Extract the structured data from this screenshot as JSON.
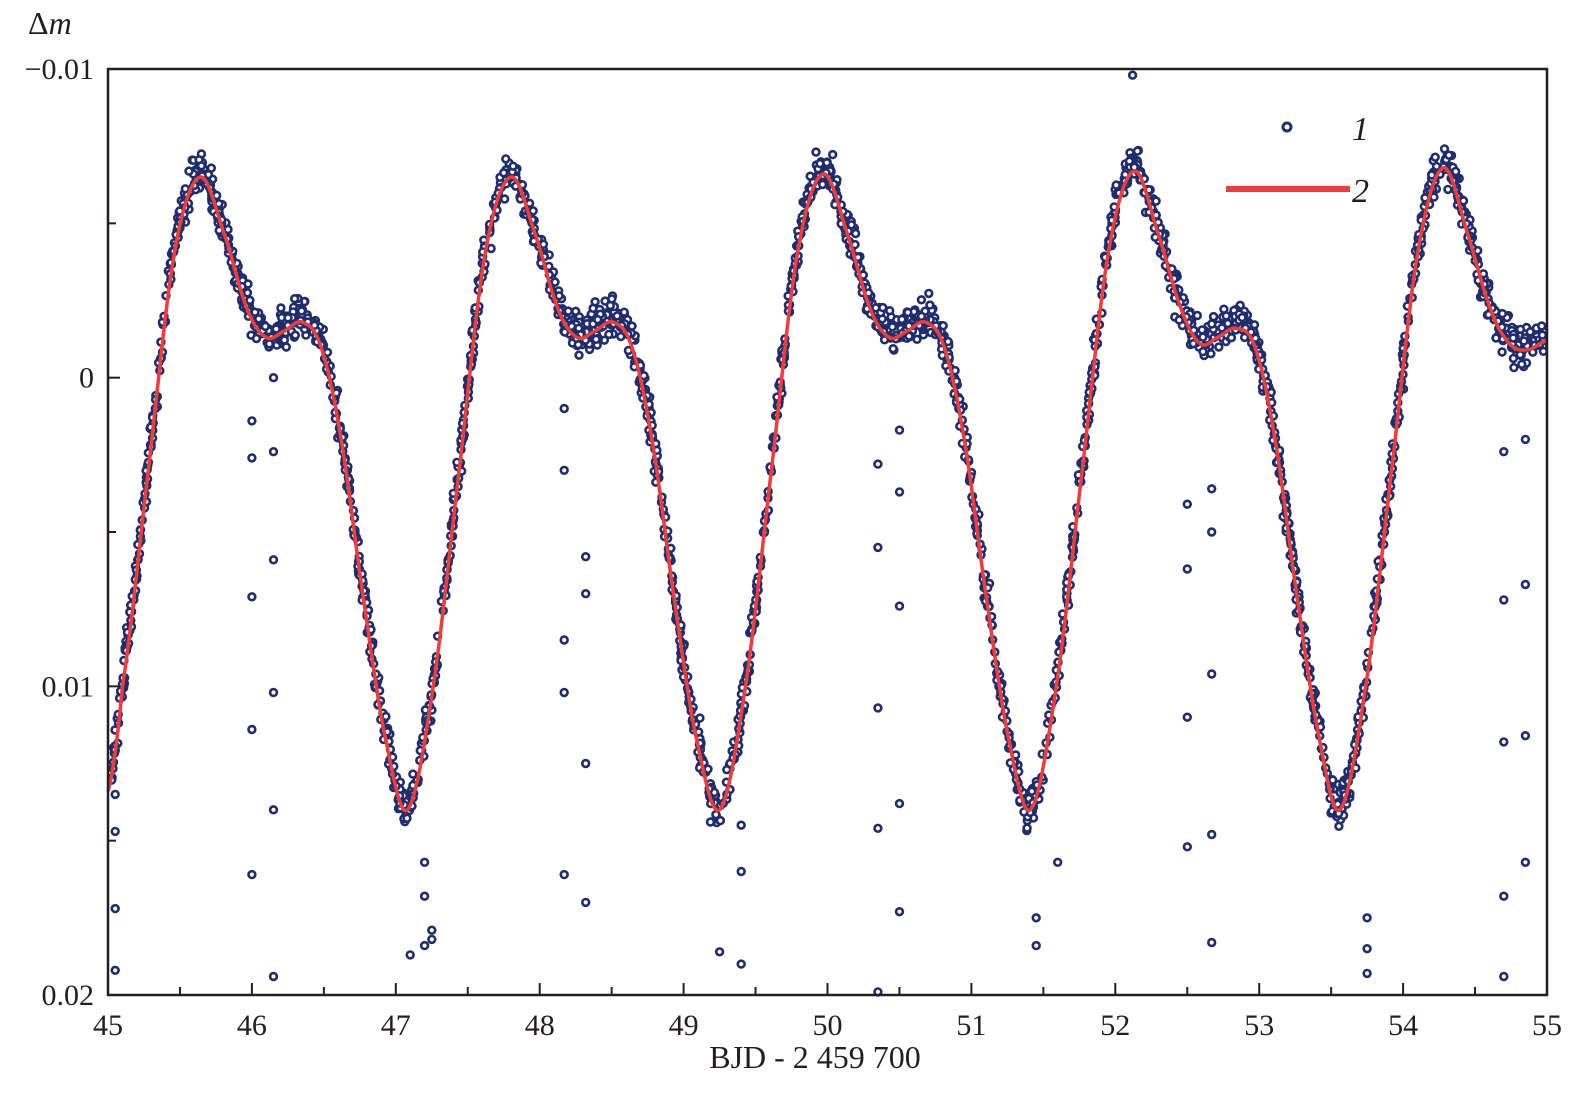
{
  "chart_data": {
    "type": "scatter",
    "title": "",
    "xlabel": "BJD - 2 459 700",
    "ylabel_symbol": "Δ",
    "ylabel_var": "m",
    "xlim": [
      45,
      55
    ],
    "ylim": [
      -0.01,
      0.02
    ],
    "y_inverted": true,
    "grid": false,
    "x_ticks": [
      "45",
      "46",
      "47",
      "48",
      "49",
      "50",
      "51",
      "52",
      "53",
      "54",
      "55"
    ],
    "x_tick_values": [
      45,
      46,
      47,
      48,
      49,
      50,
      51,
      52,
      53,
      54,
      55
    ],
    "y_ticks": [
      "−0.01",
      "0",
      "0.01",
      "0.02"
    ],
    "y_tick_values": [
      -0.01,
      0,
      0.01,
      0.02
    ],
    "colors": {
      "observations": "#1f2d6b",
      "model": "#ee3d3a",
      "axis": "#231f20"
    },
    "legend": {
      "placement": "top-right",
      "entries": [
        {
          "label": "1",
          "kind": "points"
        },
        {
          "label": "2",
          "kind": "line"
        }
      ]
    },
    "series": [
      {
        "name": "2",
        "kind": "line",
        "x": [
          45.0,
          45.1,
          45.28,
          45.46,
          45.64,
          45.82,
          45.97,
          46.1,
          46.22,
          46.35,
          46.48,
          46.62,
          46.77,
          46.92,
          47.08,
          47.26,
          47.44,
          47.62,
          47.8,
          47.98,
          48.13,
          48.26,
          48.38,
          48.51,
          48.64,
          48.78,
          48.93,
          49.08,
          49.25,
          49.43,
          49.61,
          49.79,
          49.97,
          50.15,
          50.3,
          50.43,
          50.55,
          50.68,
          50.81,
          50.95,
          51.1,
          51.25,
          51.41,
          51.59,
          51.77,
          51.95,
          52.13,
          52.31,
          52.46,
          52.59,
          52.71,
          52.84,
          52.97,
          53.11,
          53.26,
          53.41,
          53.56,
          53.74,
          53.92,
          54.1,
          54.28,
          54.46,
          54.61,
          54.74,
          54.86,
          55.0
        ],
        "y": [
          0.0134,
          0.01,
          0.003,
          -0.004,
          -0.0065,
          -0.0045,
          -0.0022,
          -0.0013,
          -0.0015,
          -0.0018,
          -0.001,
          0.002,
          0.007,
          0.0115,
          0.014,
          0.01,
          0.003,
          -0.004,
          -0.0065,
          -0.0045,
          -0.0022,
          -0.0013,
          -0.0015,
          -0.0018,
          -0.001,
          0.002,
          0.007,
          0.0115,
          0.014,
          0.01,
          0.003,
          -0.004,
          -0.0066,
          -0.0045,
          -0.0022,
          -0.0013,
          -0.0015,
          -0.0018,
          -0.001,
          0.002,
          0.007,
          0.0115,
          0.014,
          0.01,
          0.003,
          -0.004,
          -0.0067,
          -0.0045,
          -0.0022,
          -0.0011,
          -0.0013,
          -0.0016,
          -0.001,
          0.002,
          0.007,
          0.0115,
          0.014,
          0.01,
          0.003,
          -0.004,
          -0.0068,
          -0.0045,
          -0.0022,
          -0.0011,
          -0.0009,
          -0.0012
        ]
      },
      {
        "name": "1",
        "kind": "points",
        "band_scatter_mag": 0.0008,
        "band_points": 2600,
        "outliers_x": [
          45.05,
          45.05,
          45.05,
          45.05,
          46.0,
          46.0,
          46.0,
          46.0,
          46.0,
          46.15,
          46.15,
          46.15,
          46.15,
          46.15,
          46.15,
          47.1,
          47.2,
          47.2,
          47.2,
          47.25,
          47.25,
          48.17,
          48.17,
          48.17,
          48.17,
          48.17,
          48.32,
          48.32,
          48.32,
          48.32,
          49.25,
          49.4,
          49.4,
          49.4,
          50.35,
          50.35,
          50.35,
          50.35,
          50.35,
          50.5,
          50.5,
          50.5,
          50.5,
          50.5,
          51.45,
          51.45,
          51.6,
          52.12,
          52.5,
          52.5,
          52.5,
          52.5,
          52.67,
          52.67,
          52.67,
          52.67,
          52.67,
          53.75,
          53.75,
          53.75,
          54.7,
          54.7,
          54.7,
          54.7,
          54.7,
          54.85,
          54.85,
          54.85,
          54.85
        ],
        "outliers_y": [
          0.0135,
          0.0147,
          0.0172,
          0.0192,
          0.0014,
          0.0026,
          0.0071,
          0.0161,
          0.0114,
          0.0,
          0.0024,
          0.0059,
          0.0102,
          0.014,
          0.0194,
          0.0187,
          0.0157,
          0.0168,
          0.0184,
          0.0179,
          0.0182,
          0.001,
          0.003,
          0.0085,
          0.0102,
          0.0161,
          0.0058,
          0.007,
          0.0125,
          0.017,
          0.0186,
          0.0145,
          0.016,
          0.019,
          0.0028,
          0.0055,
          0.0107,
          0.0146,
          0.0199,
          0.0017,
          0.0037,
          0.0074,
          0.0138,
          0.0173,
          0.0175,
          0.0184,
          0.0157,
          -0.0098,
          0.0041,
          0.0062,
          0.011,
          0.0152,
          0.0036,
          0.005,
          0.0096,
          0.0148,
          0.0183,
          0.0175,
          0.0185,
          0.0193,
          0.0024,
          0.0072,
          0.0118,
          0.0168,
          0.0194,
          0.002,
          0.0067,
          0.0116,
          0.0157
        ]
      }
    ]
  }
}
